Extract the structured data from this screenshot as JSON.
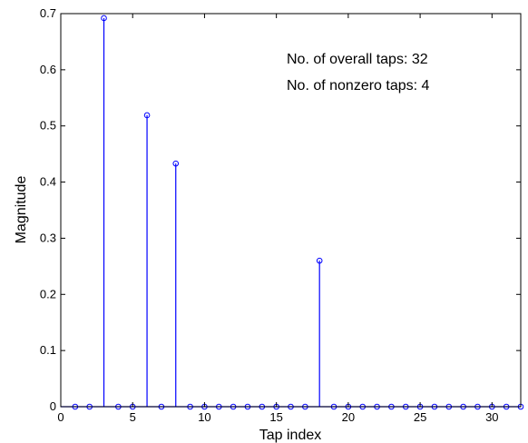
{
  "chart_data": {
    "type": "stem",
    "title": "",
    "xlabel": "Tap index",
    "ylabel": "Magnitude",
    "xlim": [
      0,
      32
    ],
    "ylim": [
      0,
      0.7
    ],
    "xticks": [
      0,
      5,
      10,
      15,
      20,
      25,
      30
    ],
    "yticks": [
      0,
      0.1,
      0.2,
      0.3,
      0.4,
      0.5,
      0.6,
      0.7
    ],
    "grid": false,
    "color": "#0000ff",
    "annotations": [
      "No. of overall taps: 32",
      "No. of nonzero taps: 4"
    ],
    "x": [
      1,
      2,
      3,
      4,
      5,
      6,
      7,
      8,
      9,
      10,
      11,
      12,
      13,
      14,
      15,
      16,
      17,
      18,
      19,
      20,
      21,
      22,
      23,
      24,
      25,
      26,
      27,
      28,
      29,
      30,
      31,
      32
    ],
    "values": [
      0,
      0,
      0.692,
      0,
      0,
      0.519,
      0,
      0.433,
      0,
      0,
      0,
      0,
      0,
      0,
      0,
      0,
      0,
      0.26,
      0,
      0,
      0,
      0,
      0,
      0,
      0,
      0,
      0,
      0,
      0,
      0,
      0,
      0
    ]
  }
}
